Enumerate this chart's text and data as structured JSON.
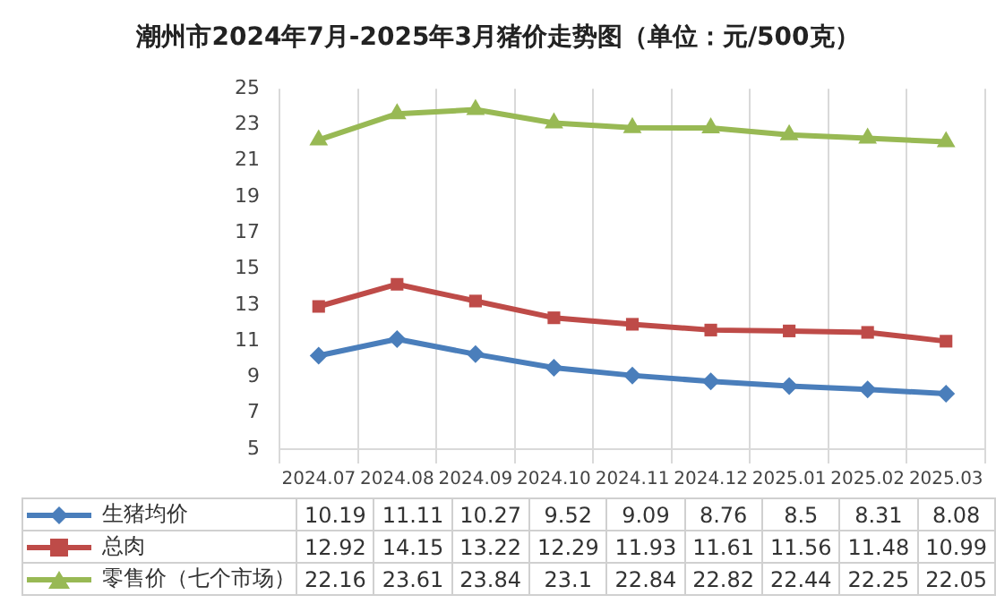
{
  "chart_data": {
    "type": "line",
    "title": "潮州市2024年7月-2025年3月猪价走势图（单位：元/500克）",
    "categories": [
      "2024.07",
      "2024.08",
      "2024.09",
      "2024.10",
      "2024.11",
      "2024.12",
      "2025.01",
      "2025.02",
      "2025.03"
    ],
    "series": [
      {
        "name": "生猪均价",
        "color": "#4a7ebb",
        "marker": "diamond",
        "values": [
          10.19,
          11.11,
          10.27,
          9.52,
          9.09,
          8.76,
          8.5,
          8.31,
          8.08
        ]
      },
      {
        "name": "总肉",
        "color": "#be4b48",
        "marker": "square",
        "values": [
          12.92,
          14.15,
          13.22,
          12.29,
          11.93,
          11.61,
          11.56,
          11.48,
          10.99
        ]
      },
      {
        "name": "零售价（七个市场）",
        "color": "#98b954",
        "marker": "triangle",
        "values": [
          22.16,
          23.61,
          23.84,
          23.1,
          22.84,
          22.82,
          22.44,
          22.25,
          22.05
        ]
      }
    ],
    "ylim": [
      5,
      25
    ],
    "yticks": [
      5,
      7,
      9,
      11,
      13,
      15,
      17,
      19,
      21,
      23,
      25
    ],
    "grid": "x",
    "legend": "bottom",
    "data_labels": true
  }
}
